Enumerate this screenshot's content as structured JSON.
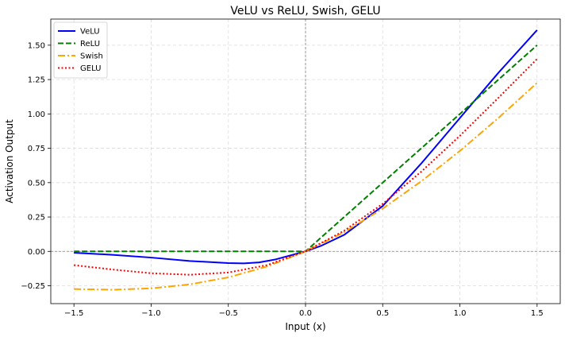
{
  "chart_data": {
    "type": "line",
    "title": "VeLU vs ReLU, Swish, GELU",
    "xlabel": "Input (x)",
    "ylabel": "Activation Output",
    "xlim": [
      -1.65,
      1.65
    ],
    "ylim": [
      -0.38,
      1.69
    ],
    "xticks": [
      -1.5,
      -1.0,
      -0.5,
      0.0,
      0.5,
      1.0,
      1.5
    ],
    "xtick_labels": [
      "−1.5",
      "−1.0",
      "−0.5",
      "0.0",
      "0.5",
      "1.0",
      "1.5"
    ],
    "yticks": [
      -0.25,
      0.0,
      0.25,
      0.5,
      0.75,
      1.0,
      1.25,
      1.5
    ],
    "ytick_labels": [
      "−0.25",
      "0.00",
      "0.25",
      "0.50",
      "0.75",
      "1.00",
      "1.25",
      "1.50"
    ],
    "grid": true,
    "legend_position": "top-left",
    "reference_lines": {
      "x": 0,
      "y": 0
    },
    "series": [
      {
        "name": "VeLU",
        "color": "#0000ff",
        "dash": "solid",
        "x": [
          -1.5,
          -1.25,
          -1.0,
          -0.75,
          -0.5,
          -0.4,
          -0.3,
          -0.2,
          -0.1,
          0.0,
          0.1,
          0.25,
          0.5,
          0.75,
          1.0,
          1.25,
          1.5
        ],
        "y": [
          -0.01,
          -0.025,
          -0.045,
          -0.07,
          -0.085,
          -0.087,
          -0.08,
          -0.06,
          -0.03,
          0.0,
          0.04,
          0.12,
          0.33,
          0.64,
          0.97,
          1.3,
          1.61
        ]
      },
      {
        "name": "ReLU",
        "color": "#008000",
        "dash": "dashed",
        "x": [
          -1.5,
          -1.0,
          -0.5,
          0.0,
          0.5,
          1.0,
          1.5
        ],
        "y": [
          0,
          0,
          0,
          0,
          0.5,
          1.0,
          1.5
        ]
      },
      {
        "name": "Swish",
        "color": "#ffa500",
        "dash": "dashdot",
        "x": [
          -1.5,
          -1.25,
          -1.0,
          -0.75,
          -0.5,
          -0.25,
          0.0,
          0.25,
          0.5,
          0.75,
          1.0,
          1.25,
          1.5
        ],
        "y": [
          -0.274,
          -0.279,
          -0.269,
          -0.24,
          -0.189,
          -0.11,
          0.0,
          0.14,
          0.311,
          0.51,
          0.731,
          0.971,
          1.226
        ]
      },
      {
        "name": "GELU",
        "color": "#ff0000",
        "dash": "dotted",
        "x": [
          -1.5,
          -1.25,
          -1.0,
          -0.75,
          -0.5,
          -0.25,
          0.0,
          0.25,
          0.5,
          0.75,
          1.0,
          1.25,
          1.5
        ],
        "y": [
          -0.1,
          -0.132,
          -0.159,
          -0.17,
          -0.154,
          -0.1,
          0.0,
          0.15,
          0.346,
          0.58,
          0.841,
          1.118,
          1.4
        ]
      }
    ]
  }
}
